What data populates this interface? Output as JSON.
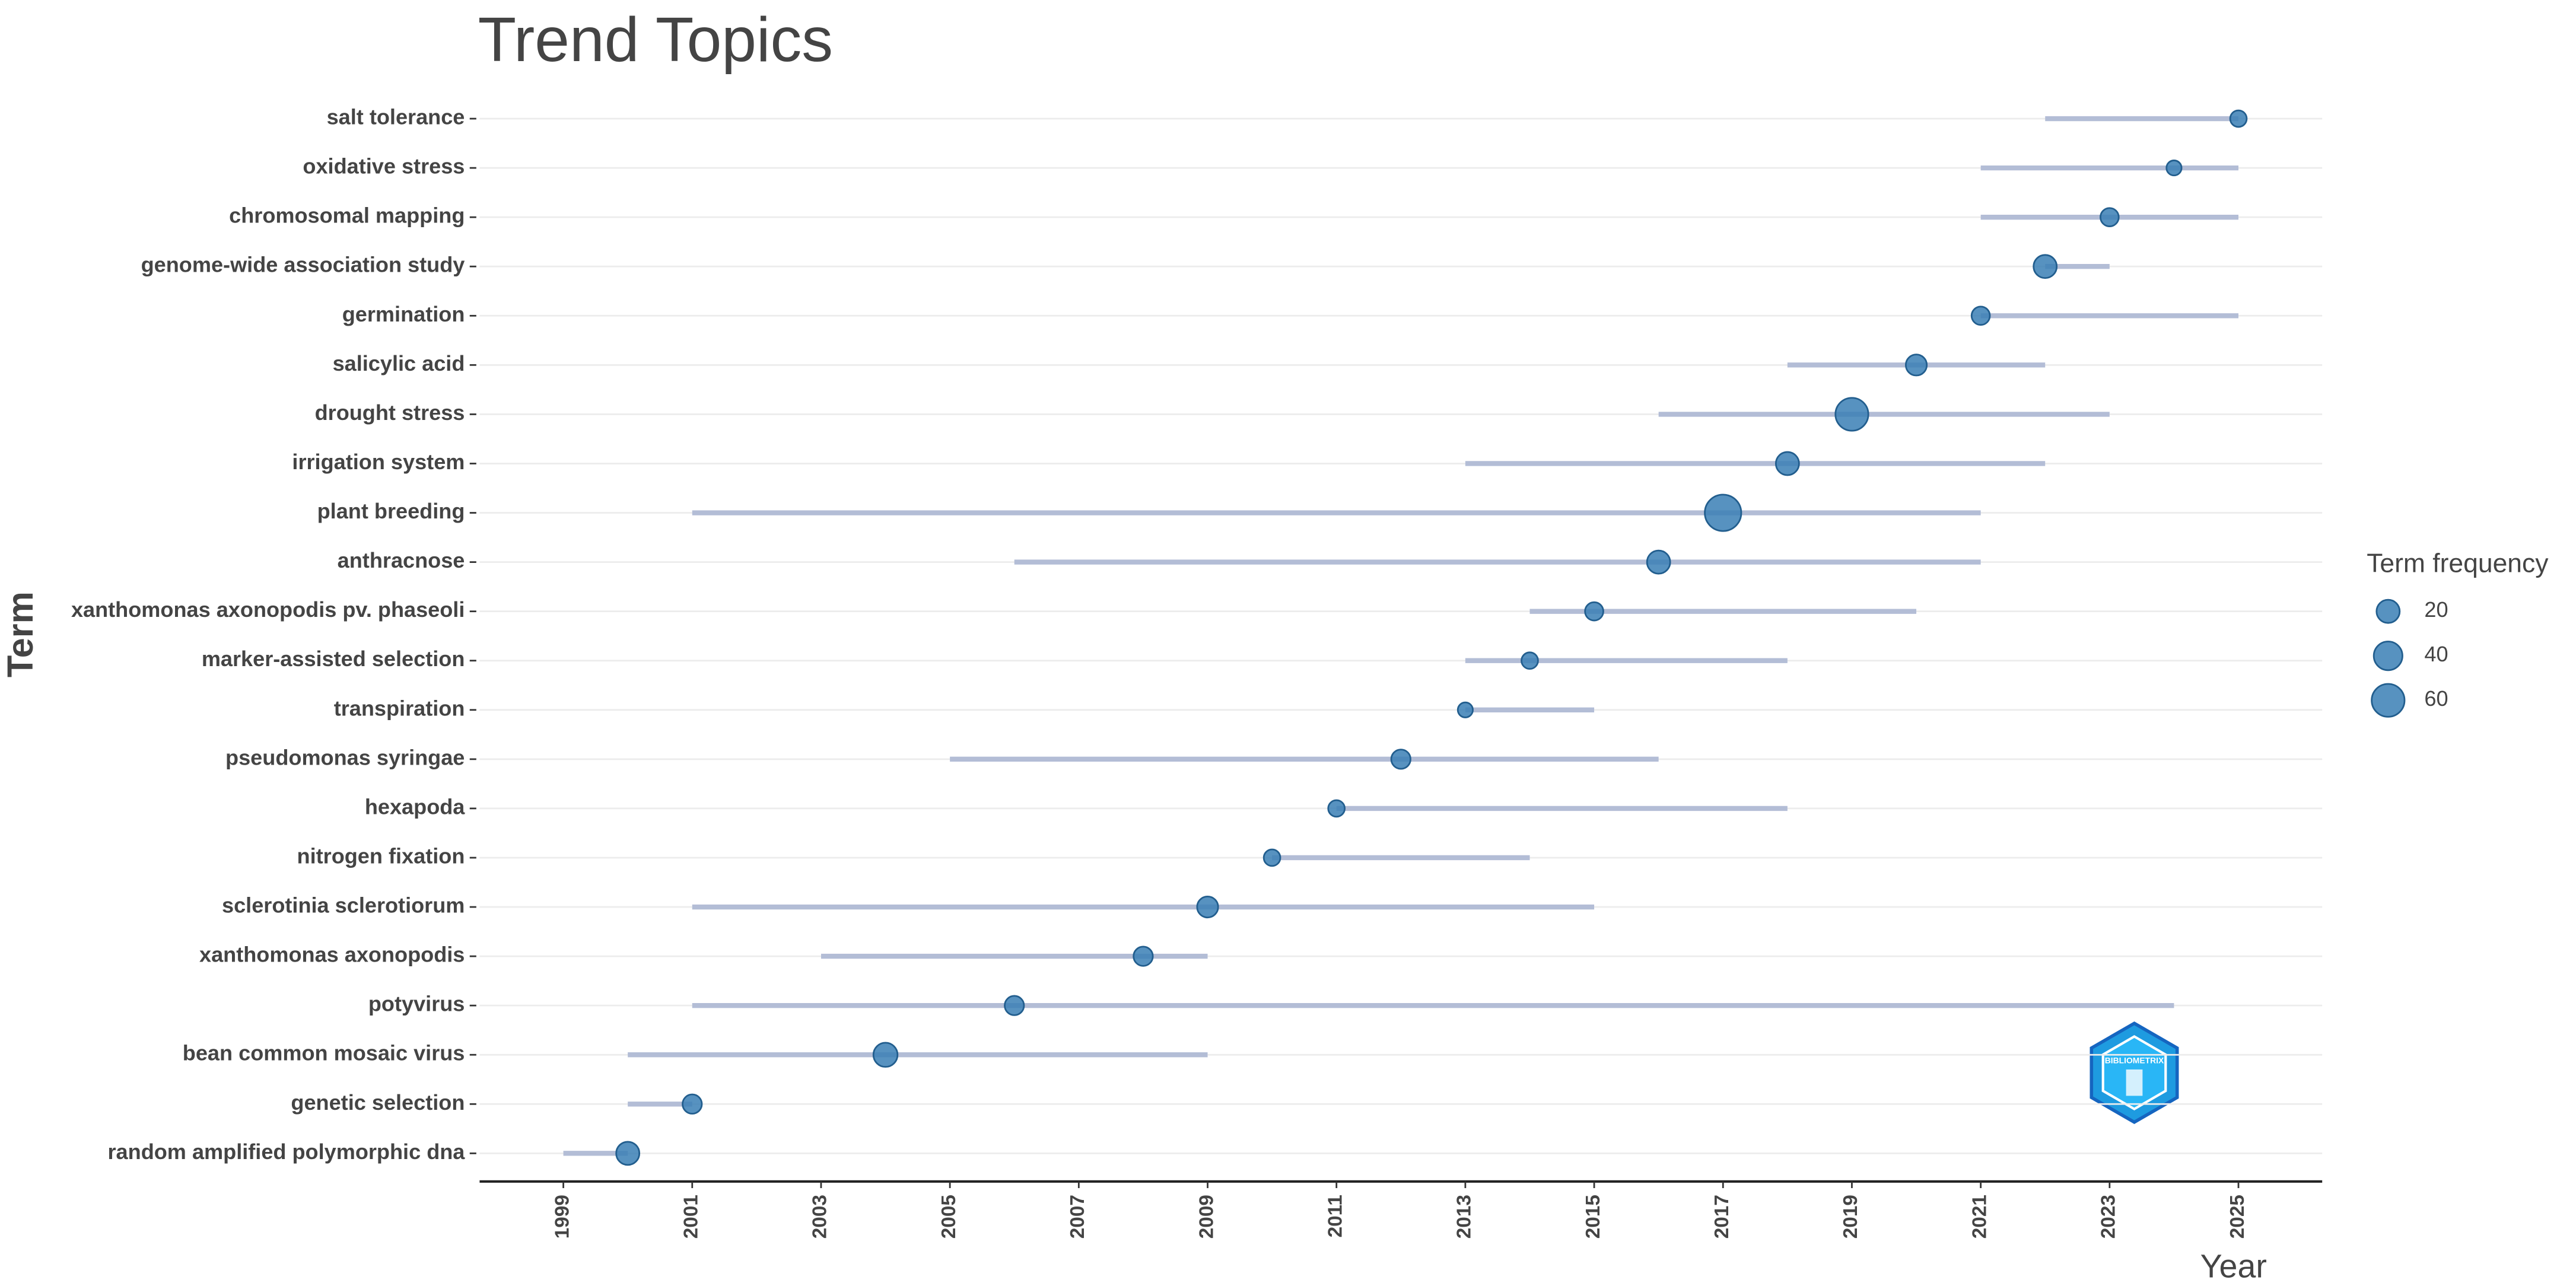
{
  "chart_data": {
    "type": "trend-topics",
    "title": "Trend Topics",
    "x_label": "Year",
    "y_label": "Term",
    "categories": [
      "salt tolerance",
      "oxidative stress",
      "chromosomal mapping",
      "genome-wide association study",
      "germination",
      "salicylic acid",
      "drought stress",
      "irrigation system",
      "plant breeding",
      "anthracnose",
      "xanthomonas axonopodis pv. phaseoli",
      "marker-assisted selection",
      "transpiration",
      "pseudomonas syringae",
      "hexapoda",
      "nitrogen fixation",
      "sclerotinia sclerotiorum",
      "xanthomonas axonopodis",
      "potyvirus",
      "bean common mosaic virus",
      "genetic selection",
      "random amplified polymorphic dna"
    ],
    "year_q1": [
      2022,
      2021,
      2021,
      2022,
      2021,
      2018,
      2016,
      2013,
      2001,
      2006,
      2014,
      2013,
      2013,
      2005,
      2011,
      2010,
      2001,
      2003,
      2001,
      2000,
      2000,
      1999
    ],
    "year_median": [
      2025,
      2024,
      2023,
      2022,
      2021,
      2020,
      2019,
      2018,
      2017,
      2016,
      2015,
      2014,
      2013,
      2012,
      2011,
      2010,
      2009,
      2008,
      2006,
      2004,
      2001,
      2000
    ],
    "year_q3": [
      2025,
      2025,
      2025,
      2023,
      2025,
      2022,
      2023,
      2022,
      2021,
      2021,
      2020,
      2018,
      2015,
      2016,
      2018,
      2014,
      2015,
      2009,
      2024,
      2009,
      2001,
      2000
    ],
    "frequency": [
      5,
      3,
      8,
      20,
      8,
      14,
      60,
      20,
      80,
      20,
      8,
      5,
      3,
      10,
      5,
      5,
      14,
      10,
      10,
      23,
      10,
      20
    ],
    "xlim": [
      1997.7,
      2026.3
    ],
    "xticks": [
      1999,
      2001,
      2003,
      2005,
      2007,
      2009,
      2011,
      2013,
      2015,
      2017,
      2019,
      2021,
      2023,
      2025
    ],
    "line_color": "#b3bdd6",
    "point_color": "#3a7fb5",
    "grid": true,
    "legend_title": "Term frequency",
    "legend_sizes": [
      20,
      40,
      60
    ],
    "logo_text": "BIBLIOMETRIX"
  }
}
